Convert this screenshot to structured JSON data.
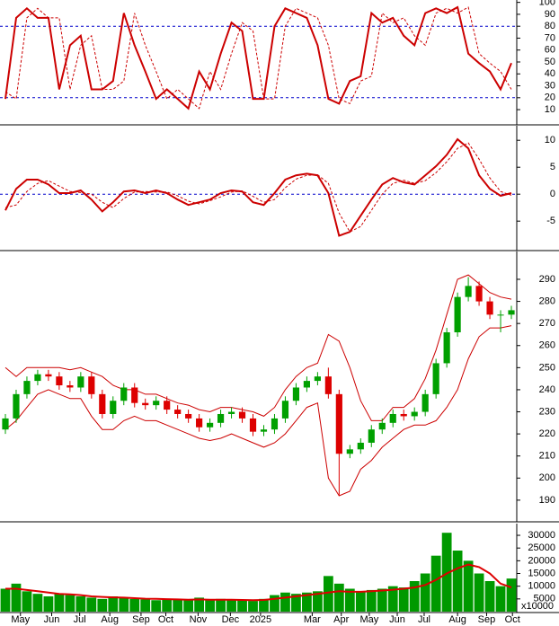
{
  "chart_data": [
    {
      "type": "line",
      "xlim": [
        0,
        48
      ],
      "ylim": [
        -2,
        102
      ],
      "yticks": [
        10,
        20,
        30,
        40,
        50,
        60,
        70,
        80,
        90,
        100
      ],
      "reference_lines": [
        20,
        80
      ],
      "reference_color": "#0000cc",
      "series": [
        {
          "color": "#cc0000",
          "values": [
            19,
            87,
            95,
            87,
            87,
            27,
            64,
            72,
            27,
            27,
            34,
            91,
            64,
            42,
            19,
            27,
            19,
            11,
            42,
            27,
            57,
            83,
            76,
            19,
            19,
            80,
            95,
            91,
            87,
            64,
            19,
            15,
            34,
            38,
            91,
            83,
            87,
            72,
            64,
            91,
            95,
            91,
            96,
            57,
            49,
            42,
            27,
            49
          ]
        },
        {
          "color": "#cc0000",
          "style": "dashed",
          "values": [
            25,
            19,
            87,
            95,
            87,
            87,
            27,
            64,
            72,
            27,
            27,
            34,
            91,
            64,
            42,
            19,
            27,
            19,
            11,
            42,
            27,
            57,
            83,
            76,
            19,
            19,
            80,
            95,
            91,
            87,
            64,
            19,
            15,
            34,
            38,
            91,
            83,
            87,
            72,
            64,
            91,
            95,
            91,
            96,
            57,
            49,
            42,
            27
          ]
        }
      ]
    },
    {
      "type": "line",
      "xlim": [
        0,
        48
      ],
      "ylim": [
        -10.3,
        12.7
      ],
      "yticks": [
        10,
        5,
        0,
        -5
      ],
      "reference_lines": [
        0
      ],
      "reference_color": "#0000cc",
      "series": [
        {
          "color": "#cc0000",
          "values": [
            -3,
            1,
            2.7,
            2.7,
            1.8,
            0.2,
            0.2,
            0.7,
            -1,
            -3.2,
            -1.5,
            0.5,
            0.7,
            0.2,
            0.7,
            0.2,
            -1,
            -2,
            -1.5,
            -1,
            0.2,
            0.7,
            0.5,
            -1.5,
            -2,
            0.2,
            2.7,
            3.5,
            3.8,
            3.5,
            0.2,
            -7.7,
            -7,
            -4,
            -1,
            1.8,
            3,
            2.2,
            1.8,
            3.5,
            5.2,
            7.3,
            10.2,
            8.5,
            3.5,
            1,
            -0.3,
            0.2
          ]
        },
        {
          "color": "#cc0000",
          "style": "dashed",
          "values": [
            -2.5,
            -2,
            0.5,
            2,
            2.5,
            1.5,
            0.5,
            0.3,
            0,
            -1.5,
            -2.5,
            -0.8,
            0.4,
            0.5,
            0.4,
            0.4,
            -0.3,
            -1.3,
            -1.8,
            -1.2,
            -0.5,
            0.4,
            0.6,
            -0.4,
            -1.5,
            -1,
            1.2,
            2.8,
            3.5,
            3.6,
            2,
            -3.5,
            -7,
            -6,
            -3,
            0,
            2,
            2.6,
            2,
            2.5,
            4,
            6,
            8.5,
            9.5,
            6.5,
            3,
            0.5,
            -0.2
          ]
        }
      ]
    },
    {
      "type": "candlestick",
      "xlim": [
        0,
        48
      ],
      "ylim": [
        180.6,
        302.6
      ],
      "yticks": [
        190,
        200,
        210,
        220,
        230,
        240,
        250,
        260,
        270,
        280,
        290
      ],
      "up_color": "#00a000",
      "down_color": "#dd0000",
      "band_color": "#cc0000",
      "open": [
        222,
        227,
        238,
        244,
        247,
        246,
        242,
        241,
        246,
        238,
        229,
        235,
        241,
        234,
        233,
        235,
        231,
        229,
        227,
        223,
        225,
        229,
        230,
        227,
        221,
        222,
        227,
        235,
        241,
        244,
        246,
        238,
        211,
        213,
        216,
        222,
        225,
        229,
        228,
        230,
        238,
        252,
        266,
        282,
        287,
        280,
        274,
        274
      ],
      "high": [
        229,
        240,
        246,
        249,
        249,
        248,
        244,
        248,
        248,
        240,
        237,
        243,
        243,
        236,
        237,
        237,
        233,
        231,
        229,
        227,
        231,
        232,
        232,
        229,
        224,
        229,
        237,
        243,
        246,
        248,
        250,
        240,
        215,
        218,
        224,
        227,
        231,
        231,
        232,
        240,
        254,
        268,
        284,
        291,
        289,
        282,
        276,
        278
      ],
      "low": [
        220,
        225,
        236,
        242,
        244,
        240,
        239,
        239,
        236,
        227,
        227,
        233,
        232,
        231,
        231,
        229,
        227,
        225,
        221,
        221,
        223,
        227,
        225,
        219,
        219,
        220,
        225,
        233,
        239,
        242,
        236,
        192,
        209,
        211,
        214,
        220,
        223,
        226,
        226,
        228,
        236,
        250,
        264,
        280,
        278,
        272,
        266,
        272
      ],
      "close": [
        227,
        238,
        244,
        247,
        246,
        242,
        241,
        246,
        238,
        229,
        235,
        241,
        234,
        233,
        235,
        231,
        229,
        227,
        223,
        225,
        229,
        230,
        227,
        221,
        222,
        227,
        235,
        241,
        244,
        246,
        238,
        211,
        213,
        216,
        222,
        225,
        229,
        228,
        230,
        238,
        252,
        266,
        282,
        287,
        280,
        274,
        274,
        276
      ],
      "upper_band": [
        250,
        246,
        250,
        250,
        250,
        250,
        249,
        250,
        248,
        246,
        242,
        240,
        240,
        238,
        238,
        236,
        234,
        233,
        231,
        230,
        232,
        232,
        231,
        230,
        228,
        232,
        240,
        246,
        250,
        252,
        265,
        262,
        250,
        235,
        226,
        226,
        232,
        232,
        236,
        245,
        258,
        274,
        290,
        292,
        288,
        284,
        282,
        281
      ],
      "lower_band": [
        222,
        226,
        232,
        238,
        240,
        238,
        236,
        236,
        228,
        222,
        222,
        226,
        228,
        226,
        226,
        224,
        222,
        220,
        218,
        217,
        218,
        220,
        218,
        216,
        214,
        216,
        220,
        226,
        232,
        234,
        200,
        192,
        194,
        204,
        208,
        214,
        218,
        222,
        224,
        224,
        226,
        232,
        240,
        254,
        264,
        268,
        268,
        269
      ]
    },
    {
      "type": "bar",
      "xlim": [
        0,
        48
      ],
      "ylim": [
        0,
        34600
      ],
      "yticks": [
        5000,
        10000,
        15000,
        20000,
        25000,
        30000
      ],
      "unit_label": "x10000",
      "color": "#009900",
      "ma_color": "#dd0000",
      "values": [
        9000,
        11000,
        8000,
        7000,
        6000,
        7000,
        6500,
        6000,
        5500,
        5000,
        6000,
        5500,
        5000,
        4800,
        4500,
        5000,
        4800,
        4500,
        5500,
        4500,
        5000,
        4600,
        4500,
        4200,
        5000,
        6500,
        7500,
        7000,
        7500,
        8000,
        14000,
        11000,
        9000,
        8000,
        8500,
        9000,
        10000,
        9500,
        12000,
        15000,
        22000,
        31000,
        24000,
        20000,
        15000,
        12000,
        10000,
        13000
      ],
      "ma": [
        9000,
        9000,
        8500,
        8000,
        7500,
        7000,
        6800,
        6500,
        6000,
        5800,
        5600,
        5500,
        5300,
        5100,
        5000,
        4900,
        4800,
        4700,
        4800,
        4700,
        4700,
        4700,
        4600,
        4500,
        4600,
        5000,
        5500,
        6000,
        6500,
        7000,
        7500,
        8000,
        7800,
        7800,
        8000,
        8300,
        8600,
        9000,
        9500,
        10500,
        12500,
        15000,
        17000,
        18500,
        17500,
        15000,
        11000,
        9500
      ],
      "xticks": [
        {
          "value": 1.9,
          "label": "May"
        },
        {
          "value": 4.8,
          "label": "Jun"
        },
        {
          "value": 7.4,
          "label": "Jul"
        },
        {
          "value": 10.2,
          "label": "Aug"
        },
        {
          "value": 13.1,
          "label": "Sep"
        },
        {
          "value": 15.4,
          "label": "Oct"
        },
        {
          "value": 18.4,
          "label": "Nov"
        },
        {
          "value": 21.4,
          "label": "Dec"
        },
        {
          "value": 24.2,
          "label": "2025"
        },
        {
          "value": 29.0,
          "label": "Mar"
        },
        {
          "value": 31.7,
          "label": "Apr"
        },
        {
          "value": 34.3,
          "label": "May"
        },
        {
          "value": 36.9,
          "label": "Jun"
        },
        {
          "value": 39.4,
          "label": "Jul"
        },
        {
          "value": 42.5,
          "label": "Aug"
        },
        {
          "value": 45.2,
          "label": "Sep"
        },
        {
          "value": 47.6,
          "label": "Oct"
        }
      ]
    }
  ]
}
